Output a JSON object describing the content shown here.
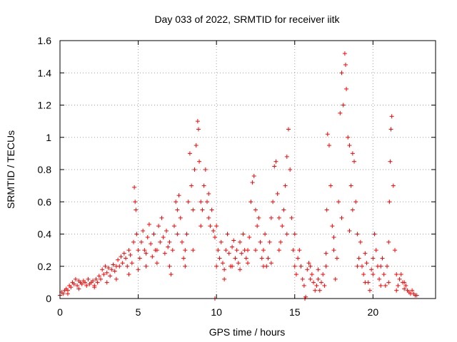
{
  "chart_data": {
    "type": "scatter",
    "title": "Day 033 of 2022, SRMTID for receiver iitk",
    "xlabel": "GPS time / hours",
    "ylabel": "SRMTID / TECUs",
    "xlim": [
      0,
      24
    ],
    "ylim": [
      0,
      1.6
    ],
    "x_ticks": [
      0,
      5,
      10,
      15,
      20
    ],
    "x_tick_labels": [
      "0",
      "5",
      "10",
      "15",
      "20"
    ],
    "y_ticks": [
      0,
      0.2,
      0.4,
      0.6,
      0.8,
      1,
      1.2,
      1.4,
      1.6
    ],
    "y_tick_labels": [
      "0",
      "0.2",
      "0.4",
      "0.6",
      "0.8",
      "1",
      "1.2",
      "1.4",
      "1.6"
    ],
    "grid": true,
    "marker": "+",
    "series": [
      {
        "name": "SRMTID",
        "color": "#ff0000",
        "points": [
          [
            0.0,
            0.02
          ],
          [
            0.1,
            0.04
          ],
          [
            0.2,
            0.03
          ],
          [
            0.3,
            0.05
          ],
          [
            0.4,
            0.06
          ],
          [
            0.5,
            0.05
          ],
          [
            0.6,
            0.08
          ],
          [
            0.7,
            0.07
          ],
          [
            0.8,
            0.1
          ],
          [
            0.9,
            0.09
          ],
          [
            1.0,
            0.12
          ],
          [
            1.1,
            0.08
          ],
          [
            1.2,
            0.11
          ],
          [
            1.3,
            0.1
          ],
          [
            1.4,
            0.09
          ],
          [
            1.5,
            0.11
          ],
          [
            1.6,
            0.1
          ],
          [
            1.7,
            0.08
          ],
          [
            1.8,
            0.12
          ],
          [
            1.9,
            0.09
          ],
          [
            2.0,
            0.1
          ],
          [
            2.1,
            0.11
          ],
          [
            2.2,
            0.08
          ],
          [
            2.3,
            0.12
          ],
          [
            2.4,
            0.1
          ],
          [
            2.5,
            0.14
          ],
          [
            2.6,
            0.12
          ],
          [
            2.7,
            0.18
          ],
          [
            2.8,
            0.15
          ],
          [
            2.9,
            0.2
          ],
          [
            3.0,
            0.16
          ],
          [
            3.1,
            0.19
          ],
          [
            3.2,
            0.14
          ],
          [
            3.3,
            0.18
          ],
          [
            3.4,
            0.21
          ],
          [
            3.5,
            0.17
          ],
          [
            3.6,
            0.2
          ],
          [
            3.7,
            0.24
          ],
          [
            3.8,
            0.2
          ],
          [
            3.9,
            0.26
          ],
          [
            4.0,
            0.22
          ],
          [
            4.1,
            0.28
          ],
          [
            4.2,
            0.25
          ],
          [
            4.3,
            0.2
          ],
          [
            4.4,
            0.3
          ],
          [
            4.5,
            0.27
          ],
          [
            4.6,
            0.22
          ],
          [
            4.7,
            0.35
          ],
          [
            4.75,
            0.69
          ],
          [
            4.8,
            0.6
          ],
          [
            4.85,
            0.55
          ],
          [
            4.9,
            0.4
          ],
          [
            5.0,
            0.3
          ],
          [
            5.1,
            0.25
          ],
          [
            5.2,
            0.35
          ],
          [
            5.3,
            0.42
          ],
          [
            5.4,
            0.3
          ],
          [
            5.5,
            0.2
          ],
          [
            5.6,
            0.38
          ],
          [
            5.7,
            0.46
          ],
          [
            5.8,
            0.34
          ],
          [
            5.9,
            0.26
          ],
          [
            6.0,
            0.4
          ],
          [
            6.1,
            0.3
          ],
          [
            6.2,
            0.22
          ],
          [
            6.3,
            0.45
          ],
          [
            6.4,
            0.35
          ],
          [
            6.5,
            0.5
          ],
          [
            6.6,
            0.38
          ],
          [
            6.7,
            0.28
          ],
          [
            6.8,
            0.42
          ],
          [
            6.9,
            0.32
          ],
          [
            7.0,
            0.2
          ],
          [
            7.1,
            0.15
          ],
          [
            7.2,
            0.3
          ],
          [
            7.3,
            0.45
          ],
          [
            7.4,
            0.6
          ],
          [
            7.5,
            0.55
          ],
          [
            7.6,
            0.64
          ],
          [
            7.7,
            0.5
          ],
          [
            7.8,
            0.35
          ],
          [
            7.9,
            0.25
          ],
          [
            8.0,
            0.2
          ],
          [
            8.1,
            0.4
          ],
          [
            8.2,
            0.6
          ],
          [
            8.3,
            0.9
          ],
          [
            8.4,
            0.7
          ],
          [
            8.5,
            0.55
          ],
          [
            8.6,
            0.8
          ],
          [
            8.7,
            0.95
          ],
          [
            8.8,
            1.1
          ],
          [
            8.85,
            1.05
          ],
          [
            8.9,
            0.85
          ],
          [
            9.0,
            0.6
          ],
          [
            9.1,
            0.55
          ],
          [
            9.2,
            0.7
          ],
          [
            9.3,
            0.8
          ],
          [
            9.4,
            0.6
          ],
          [
            9.5,
            0.5
          ],
          [
            9.6,
            0.45
          ],
          [
            9.7,
            0.55
          ],
          [
            9.8,
            0.42
          ],
          [
            9.9,
            0.38
          ],
          [
            10.0,
            0.45
          ],
          [
            10.1,
            0.3
          ],
          [
            10.2,
            0.25
          ],
          [
            10.3,
            0.35
          ],
          [
            10.4,
            0.22
          ],
          [
            10.5,
            0.18
          ],
          [
            10.6,
            0.3
          ],
          [
            10.7,
            0.4
          ],
          [
            10.8,
            0.28
          ],
          [
            10.9,
            0.2
          ],
          [
            11.0,
            0.32
          ],
          [
            11.1,
            0.36
          ],
          [
            11.2,
            0.25
          ],
          [
            11.3,
            0.3
          ],
          [
            11.4,
            0.22
          ],
          [
            11.5,
            0.35
          ],
          [
            11.6,
            0.28
          ],
          [
            11.7,
            0.4
          ],
          [
            11.8,
            0.3
          ],
          [
            11.9,
            0.25
          ],
          [
            12.0,
            0.3
          ],
          [
            12.1,
            0.38
          ],
          [
            12.2,
            0.6
          ],
          [
            12.3,
            0.72
          ],
          [
            12.4,
            0.76
          ],
          [
            12.5,
            0.55
          ],
          [
            12.6,
            0.45
          ],
          [
            12.7,
            0.5
          ],
          [
            12.8,
            0.35
          ],
          [
            12.9,
            0.25
          ],
          [
            13.0,
            0.3
          ],
          [
            13.1,
            0.4
          ],
          [
            13.2,
            0.2
          ],
          [
            13.3,
            0.25
          ],
          [
            13.4,
            0.35
          ],
          [
            13.5,
            0.5
          ],
          [
            13.6,
            0.6
          ],
          [
            13.7,
            0.82
          ],
          [
            13.8,
            0.85
          ],
          [
            13.9,
            0.65
          ],
          [
            14.0,
            0.5
          ],
          [
            14.1,
            0.35
          ],
          [
            14.2,
            0.45
          ],
          [
            14.3,
            0.55
          ],
          [
            14.4,
            0.7
          ],
          [
            14.5,
            0.88
          ],
          [
            14.6,
            1.05
          ],
          [
            14.7,
            0.8
          ],
          [
            14.8,
            0.5
          ],
          [
            14.9,
            0.3
          ],
          [
            15.0,
            0.2
          ],
          [
            15.1,
            0.15
          ],
          [
            15.2,
            0.25
          ],
          [
            15.3,
            0.3
          ],
          [
            15.4,
            0.2
          ],
          [
            15.5,
            0.12
          ],
          [
            15.6,
            0.08
          ],
          [
            15.7,
            0.01
          ],
          [
            15.8,
            0.18
          ],
          [
            15.9,
            0.22
          ],
          [
            16.0,
            0.2
          ],
          [
            16.1,
            0.15
          ],
          [
            16.2,
            0.1
          ],
          [
            16.3,
            0.05
          ],
          [
            16.4,
            0.08
          ],
          [
            16.5,
            0.12
          ],
          [
            16.6,
            0.05
          ],
          [
            16.7,
            0.1
          ],
          [
            16.8,
            0.15
          ],
          [
            16.9,
            0.08
          ],
          [
            17.0,
            0.2
          ],
          [
            17.05,
            0.55
          ],
          [
            17.1,
            1.02
          ],
          [
            17.2,
            0.95
          ],
          [
            17.3,
            0.7
          ],
          [
            17.4,
            0.45
          ],
          [
            17.5,
            0.3
          ],
          [
            17.6,
            0.12
          ],
          [
            17.7,
            0.25
          ],
          [
            17.8,
            0.6
          ],
          [
            17.9,
            1.15
          ],
          [
            18.0,
            1.4
          ],
          [
            18.1,
            1.2
          ],
          [
            18.2,
            1.52
          ],
          [
            18.25,
            1.45
          ],
          [
            18.3,
            1.3
          ],
          [
            18.4,
            1.0
          ],
          [
            18.5,
            0.95
          ],
          [
            18.6,
            0.7
          ],
          [
            18.7,
            0.55
          ],
          [
            18.8,
            0.85
          ],
          [
            18.9,
            0.6
          ],
          [
            19.0,
            0.4
          ],
          [
            19.1,
            0.25
          ],
          [
            19.2,
            0.35
          ],
          [
            19.3,
            0.2
          ],
          [
            19.4,
            0.15
          ],
          [
            19.5,
            0.28
          ],
          [
            19.6,
            0.22
          ],
          [
            19.7,
            0.1
          ],
          [
            19.8,
            0.05
          ],
          [
            19.9,
            0.18
          ],
          [
            20.0,
            0.25
          ],
          [
            20.1,
            0.4
          ],
          [
            20.2,
            0.3
          ],
          [
            20.3,
            0.2
          ],
          [
            20.4,
            0.12
          ],
          [
            20.5,
            0.08
          ],
          [
            20.6,
            0.25
          ],
          [
            20.7,
            0.15
          ],
          [
            20.8,
            0.08
          ],
          [
            20.9,
            0.2
          ],
          [
            21.0,
            0.35
          ],
          [
            21.05,
            0.6
          ],
          [
            21.1,
            0.85
          ],
          [
            21.15,
            1.05
          ],
          [
            21.2,
            1.13
          ],
          [
            21.3,
            0.7
          ],
          [
            21.4,
            0.3
          ],
          [
            21.5,
            0.15
          ],
          [
            21.6,
            0.08
          ],
          [
            21.7,
            0.12
          ],
          [
            21.8,
            0.15
          ],
          [
            21.9,
            0.1
          ],
          [
            22.0,
            0.06
          ],
          [
            22.1,
            0.08
          ],
          [
            22.2,
            0.05
          ],
          [
            22.3,
            0.04
          ],
          [
            22.4,
            0.03
          ],
          [
            22.5,
            0.05
          ],
          [
            22.6,
            0.03
          ],
          [
            22.7,
            0.02
          ],
          [
            22.8,
            0.02
          ],
          [
            0.5,
            0.03
          ],
          [
            1.2,
            0.06
          ],
          [
            2.2,
            0.07
          ],
          [
            3.0,
            0.1
          ],
          [
            3.6,
            0.12
          ],
          [
            4.4,
            0.15
          ],
          [
            5.0,
            0.18
          ],
          [
            5.5,
            0.28
          ],
          [
            6.2,
            0.3
          ],
          [
            7.0,
            0.35
          ],
          [
            7.5,
            0.4
          ],
          [
            8.0,
            0.3
          ],
          [
            8.5,
            0.3
          ],
          [
            9.0,
            0.45
          ],
          [
            9.5,
            0.65
          ],
          [
            10.0,
            0.2
          ],
          [
            10.5,
            0.12
          ],
          [
            11.0,
            0.2
          ],
          [
            11.5,
            0.18
          ],
          [
            12.0,
            0.22
          ],
          [
            12.5,
            0.3
          ],
          [
            13.0,
            0.2
          ],
          [
            13.5,
            0.22
          ],
          [
            14.0,
            0.3
          ],
          [
            14.5,
            0.4
          ],
          [
            15.0,
            0.4
          ],
          [
            16.0,
            0.12
          ],
          [
            16.5,
            0.18
          ],
          [
            17.0,
            0.28
          ],
          [
            17.5,
            0.38
          ],
          [
            18.0,
            0.5
          ],
          [
            18.5,
            0.42
          ],
          [
            19.0,
            0.2
          ],
          [
            19.5,
            0.1
          ],
          [
            20.0,
            0.15
          ],
          [
            20.5,
            0.2
          ],
          [
            21.0,
            0.1
          ],
          [
            21.5,
            0.05
          ],
          [
            22.0,
            0.1
          ],
          [
            18.7,
            0.9
          ],
          [
            9.9,
            0.0
          ],
          [
            15.65,
            0.0
          ]
        ]
      }
    ]
  }
}
